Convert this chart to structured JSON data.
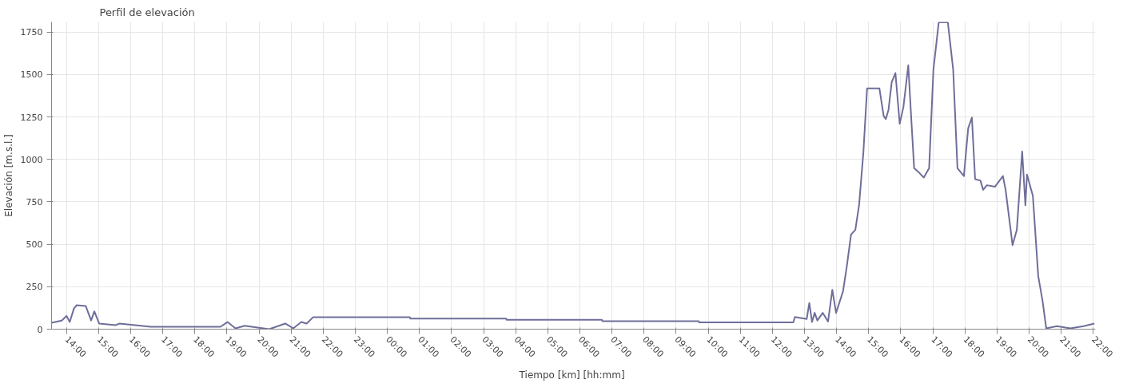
{
  "chart_data": {
    "type": "line",
    "title": "Perfil de elevación",
    "xlabel": "Tiempo [km]  [hh:mm]",
    "ylabel": "Elevación [m.s.l.]",
    "xlim": [
      "2000-01-01T13:32",
      "2000-01-02T22:04"
    ],
    "ylim": [
      0,
      1810
    ],
    "xticks": [
      {
        "value": "2000-01-01T14:00",
        "label": "14:00"
      },
      {
        "value": "2000-01-01T15:00",
        "label": "15:00"
      },
      {
        "value": "2000-01-01T16:00",
        "label": "16:00"
      },
      {
        "value": "2000-01-01T17:00",
        "label": "17:00"
      },
      {
        "value": "2000-01-01T18:00",
        "label": "18:00"
      },
      {
        "value": "2000-01-01T19:00",
        "label": "19:00"
      },
      {
        "value": "2000-01-01T20:00",
        "label": "20:00"
      },
      {
        "value": "2000-01-01T21:00",
        "label": "21:00"
      },
      {
        "value": "2000-01-01T22:00",
        "label": "22:00"
      },
      {
        "value": "2000-01-01T23:00",
        "label": "23:00"
      },
      {
        "value": "2000-01-02T00:00",
        "label": "00:00"
      },
      {
        "value": "2000-01-02T01:00",
        "label": "01:00"
      },
      {
        "value": "2000-01-02T02:00",
        "label": "02:00"
      },
      {
        "value": "2000-01-02T03:00",
        "label": "03:00"
      },
      {
        "value": "2000-01-02T04:00",
        "label": "04:00"
      },
      {
        "value": "2000-01-02T05:00",
        "label": "05:00"
      },
      {
        "value": "2000-01-02T06:00",
        "label": "06:00"
      },
      {
        "value": "2000-01-02T07:00",
        "label": "07:00"
      },
      {
        "value": "2000-01-02T08:00",
        "label": "08:00"
      },
      {
        "value": "2000-01-02T09:00",
        "label": "09:00"
      },
      {
        "value": "2000-01-02T10:00",
        "label": "10:00"
      },
      {
        "value": "2000-01-02T11:00",
        "label": "11:00"
      },
      {
        "value": "2000-01-02T12:00",
        "label": "12:00"
      },
      {
        "value": "2000-01-02T13:00",
        "label": "13:00"
      },
      {
        "value": "2000-01-02T14:00",
        "label": "14:00"
      },
      {
        "value": "2000-01-02T15:00",
        "label": "15:00"
      },
      {
        "value": "2000-01-02T16:00",
        "label": "16:00"
      },
      {
        "value": "2000-01-02T17:00",
        "label": "17:00"
      },
      {
        "value": "2000-01-02T18:00",
        "label": "18:00"
      },
      {
        "value": "2000-01-02T19:00",
        "label": "19:00"
      },
      {
        "value": "2000-01-02T20:00",
        "label": "20:00"
      },
      {
        "value": "2000-01-02T21:00",
        "label": "21:00"
      },
      {
        "value": "2000-01-02T22:00",
        "label": "22:00"
      }
    ],
    "yticks": [
      0,
      250,
      500,
      750,
      1000,
      1250,
      1500,
      1750
    ],
    "grid": true,
    "marker": "none",
    "line_style": "solid",
    "series": [
      {
        "color": "#6e6e9a",
        "x": [
          "2000-01-01T13:32",
          "2000-01-01T13:51",
          "2000-01-01T14:00",
          "2000-01-01T14:06",
          "2000-01-01T14:14",
          "2000-01-01T14:19",
          "2000-01-01T14:36",
          "2000-01-01T14:46",
          "2000-01-01T14:52",
          "2000-01-01T15:01",
          "2000-01-01T15:32",
          "2000-01-01T15:39",
          "2000-01-01T16:37",
          "2000-01-01T18:48",
          "2000-01-01T19:01",
          "2000-01-01T19:16",
          "2000-01-01T19:33",
          "2000-01-01T20:19",
          "2000-01-01T20:49",
          "2000-01-01T21:04",
          "2000-01-01T21:19",
          "2000-01-01T21:29",
          "2000-01-01T21:41",
          "2000-01-02T00:42",
          "2000-01-02T00:43",
          "2000-01-02T03:42",
          "2000-01-02T03:43",
          "2000-01-02T06:41",
          "2000-01-02T06:42",
          "2000-01-02T09:42",
          "2000-01-02T09:43",
          "2000-01-02T12:39",
          "2000-01-02T12:42",
          "2000-01-02T13:04",
          "2000-01-02T13:09",
          "2000-01-02T13:14",
          "2000-01-02T13:19",
          "2000-01-02T13:24",
          "2000-01-02T13:34",
          "2000-01-02T13:44",
          "2000-01-02T13:52",
          "2000-01-02T13:59",
          "2000-01-02T14:12",
          "2000-01-02T14:19",
          "2000-01-02T14:27",
          "2000-01-02T14:35",
          "2000-01-02T14:42",
          "2000-01-02T14:50",
          "2000-01-02T14:57",
          "2000-01-02T15:20",
          "2000-01-02T15:28",
          "2000-01-02T15:32",
          "2000-01-02T15:37",
          "2000-01-02T15:43",
          "2000-01-02T15:50",
          "2000-01-02T15:58",
          "2000-01-02T16:05",
          "2000-01-02T16:14",
          "2000-01-02T16:20",
          "2000-01-02T16:25",
          "2000-01-02T16:35",
          "2000-01-02T16:43",
          "2000-01-02T16:53",
          "2000-01-02T17:01",
          "2000-01-02T17:11",
          "2000-01-02T17:28",
          "2000-01-02T17:38",
          "2000-01-02T17:46",
          "2000-01-02T17:58",
          "2000-01-02T18:06",
          "2000-01-02T18:13",
          "2000-01-02T18:19",
          "2000-01-02T18:29",
          "2000-01-02T18:34",
          "2000-01-02T18:41",
          "2000-01-02T18:56",
          "2000-01-02T19:11",
          "2000-01-02T19:16",
          "2000-01-02T19:29",
          "2000-01-02T19:37",
          "2000-01-02T19:47",
          "2000-01-02T19:53",
          "2000-01-02T19:56",
          "2000-01-02T20:07",
          "2000-01-02T20:17",
          "2000-01-02T20:25",
          "2000-01-02T20:32",
          "2000-01-02T20:52",
          "2000-01-02T21:17",
          "2000-01-02T21:42",
          "2000-01-02T22:02"
        ],
        "values": [
          38,
          51,
          78,
          42,
          123,
          141,
          136,
          51,
          105,
          33,
          24,
          33,
          14,
          14,
          42,
          5,
          20,
          0,
          33,
          5,
          42,
          33,
          70,
          70,
          62,
          62,
          55,
          55,
          47,
          47,
          40,
          40,
          72,
          60,
          154,
          42,
          96,
          51,
          96,
          45,
          232,
          96,
          223,
          368,
          558,
          585,
          730,
          1038,
          1419,
          1419,
          1256,
          1238,
          1292,
          1455,
          1509,
          1210,
          1310,
          1555,
          1219,
          948,
          920,
          893,
          948,
          1528,
          1808,
          1808,
          1528,
          948,
          902,
          1183,
          1247,
          884,
          875,
          821,
          848,
          839,
          902,
          821,
          495,
          585,
          1047,
          730,
          911,
          785,
          313,
          169,
          5,
          18,
          5,
          18,
          33
        ]
      }
    ]
  }
}
